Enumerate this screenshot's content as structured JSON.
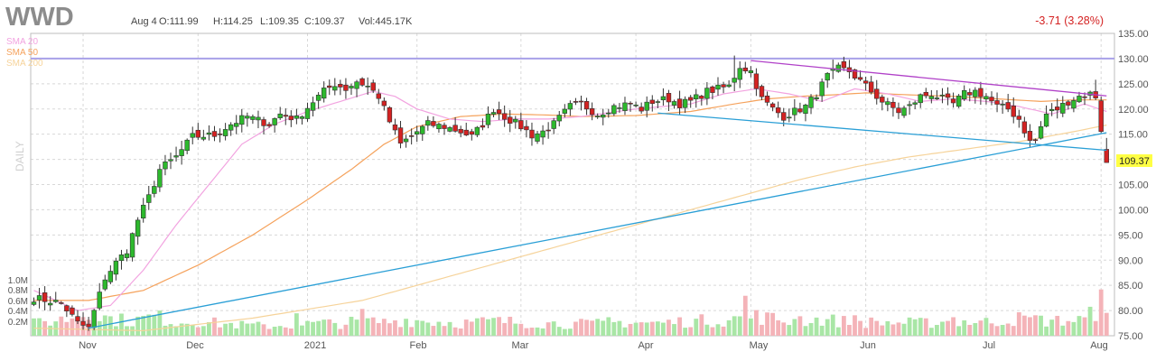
{
  "ticker": "WWD",
  "quote": {
    "date": "Aug 4",
    "open": "O:111.99",
    "high": "H:114.25",
    "low": "L:109.35",
    "close": "C:109.37",
    "volume": "Vol:445.17K",
    "change": "-3.71 (3.28%)"
  },
  "period_label": "DAILY",
  "legend": [
    {
      "label": "SMA 20",
      "color": "#f2a3e0"
    },
    {
      "label": "SMA 50",
      "color": "#f5a25c"
    },
    {
      "label": "SMA 200",
      "color": "#f6d39a"
    }
  ],
  "last_price_label": "109.37",
  "colors": {
    "up": "#2db92d",
    "down": "#d42222",
    "vol_up": "#a9e6a6",
    "vol_down": "#f4b3b8",
    "grid": "#d8d8d8",
    "resistance": "#a8a0e8",
    "trend_blue": "#2a9fd6",
    "trend_purple": "#b040c8",
    "price_tag": "#ffff44"
  },
  "chart_data": {
    "type": "candlestick",
    "x_ticks": [
      "Nov",
      "Dec",
      "2021",
      "Feb",
      "Mar",
      "Apr",
      "May",
      "Jun",
      "Jul",
      "Aug"
    ],
    "y_ticks": [
      "135.00",
      "130.00",
      "125.00",
      "120.00",
      "115.00",
      "110.00",
      "105.00",
      "100.00",
      "95.00",
      "90.00",
      "85.00",
      "80.00",
      "75.00"
    ],
    "ylim": [
      75,
      135
    ],
    "volume_ticks": [
      "1.0M",
      "0.8M",
      "0.6M",
      "0.4M",
      "0.2M"
    ],
    "volume_max": 1000000,
    "horizontal_level": 130,
    "ohlc_anchors": [
      [
        0,
        82.5
      ],
      [
        5,
        81.5
      ],
      [
        8,
        77.5
      ],
      [
        10,
        76.5
      ],
      [
        13,
        86.5
      ],
      [
        15,
        89.5
      ],
      [
        17,
        92.0
      ],
      [
        19,
        98.0
      ],
      [
        21,
        102.5
      ],
      [
        23,
        108.0
      ],
      [
        26,
        110.5
      ],
      [
        29,
        114.5
      ],
      [
        33,
        114.8
      ],
      [
        36,
        117.0
      ],
      [
        39,
        118.5
      ],
      [
        43,
        117.0
      ],
      [
        45,
        119.0
      ],
      [
        48,
        118.0
      ],
      [
        51,
        121.5
      ],
      [
        53,
        123.5
      ],
      [
        55,
        125.0
      ],
      [
        57,
        124.0
      ],
      [
        59,
        125.5
      ],
      [
        61,
        124.5
      ],
      [
        63,
        122.5
      ],
      [
        65,
        117.5
      ],
      [
        67,
        113.0
      ],
      [
        70,
        115.5
      ],
      [
        72,
        117.0
      ],
      [
        75,
        116.5
      ],
      [
        78,
        115.5
      ],
      [
        80,
        114.5
      ],
      [
        82,
        117.0
      ],
      [
        84,
        120.0
      ],
      [
        86,
        118.5
      ],
      [
        89,
        116.5
      ],
      [
        91,
        114.8
      ],
      [
        93,
        115.5
      ],
      [
        95,
        117.0
      ],
      [
        98,
        120.5
      ],
      [
        100,
        121.0
      ],
      [
        103,
        119.0
      ],
      [
        106,
        120.5
      ],
      [
        109,
        121.0
      ],
      [
        111,
        120.0
      ],
      [
        113,
        121.5
      ],
      [
        116,
        122.0
      ],
      [
        118,
        121.0
      ],
      [
        120,
        121.5
      ],
      [
        123,
        123.5
      ],
      [
        125,
        124.0
      ],
      [
        127,
        124.5
      ],
      [
        129,
        128.5
      ],
      [
        131,
        127.5
      ],
      [
        133,
        122.0
      ],
      [
        135,
        120.0
      ],
      [
        137,
        118.5
      ],
      [
        139,
        119.5
      ],
      [
        141,
        120.5
      ],
      [
        143,
        123.0
      ],
      [
        145,
        126.5
      ],
      [
        147,
        128.0
      ],
      [
        149,
        127.5
      ],
      [
        151,
        125.5
      ],
      [
        153,
        123.5
      ],
      [
        155,
        121.5
      ],
      [
        158,
        119.5
      ],
      [
        160,
        120.5
      ],
      [
        162,
        122.5
      ],
      [
        164,
        123.0
      ],
      [
        166,
        122.0
      ],
      [
        168,
        121.0
      ],
      [
        170,
        123.0
      ],
      [
        172,
        123.5
      ],
      [
        174,
        122.5
      ],
      [
        176,
        120.5
      ],
      [
        178,
        120.0
      ],
      [
        180,
        118.0
      ],
      [
        182,
        113.5
      ],
      [
        183,
        113.8
      ],
      [
        185,
        119.0
      ],
      [
        187,
        120.0
      ],
      [
        189,
        121.5
      ],
      [
        191,
        122.5
      ],
      [
        193,
        123.0
      ],
      [
        194,
        122.5
      ],
      [
        196,
        109.4
      ]
    ],
    "sma20_anchors": [
      [
        0,
        84
      ],
      [
        8,
        80
      ],
      [
        14,
        81
      ],
      [
        20,
        88
      ],
      [
        26,
        97
      ],
      [
        32,
        105
      ],
      [
        38,
        113
      ],
      [
        44,
        117
      ],
      [
        50,
        119.5
      ],
      [
        56,
        121.5
      ],
      [
        62,
        123.5
      ],
      [
        66,
        122.5
      ],
      [
        70,
        120
      ],
      [
        76,
        118
      ],
      [
        82,
        117.5
      ],
      [
        88,
        118
      ],
      [
        94,
        118
      ],
      [
        100,
        118.5
      ],
      [
        110,
        120
      ],
      [
        120,
        121
      ],
      [
        126,
        123
      ],
      [
        132,
        124
      ],
      [
        138,
        123
      ],
      [
        144,
        121.5
      ],
      [
        150,
        124
      ],
      [
        156,
        123
      ],
      [
        162,
        121.5
      ],
      [
        168,
        122
      ],
      [
        174,
        121.5
      ],
      [
        180,
        120.5
      ],
      [
        186,
        119
      ],
      [
        192,
        121
      ],
      [
        196,
        119.5
      ]
    ],
    "sma50_anchors": [
      [
        0,
        82
      ],
      [
        10,
        82
      ],
      [
        20,
        84
      ],
      [
        30,
        89
      ],
      [
        40,
        95
      ],
      [
        50,
        102
      ],
      [
        58,
        108
      ],
      [
        64,
        113
      ],
      [
        70,
        116.5
      ],
      [
        78,
        118.5
      ],
      [
        86,
        119
      ],
      [
        94,
        118.8
      ],
      [
        100,
        118.5
      ],
      [
        110,
        118.7
      ],
      [
        120,
        119.5
      ],
      [
        128,
        121
      ],
      [
        134,
        122
      ],
      [
        140,
        122.5
      ],
      [
        146,
        122.8
      ],
      [
        152,
        123.2
      ],
      [
        160,
        122.8
      ],
      [
        168,
        122.5
      ],
      [
        176,
        122
      ],
      [
        184,
        121.5
      ],
      [
        190,
        121.8
      ],
      [
        196,
        121.8
      ]
    ],
    "sma200_anchors": [
      [
        0,
        76.5
      ],
      [
        20,
        76
      ],
      [
        40,
        78.5
      ],
      [
        60,
        82
      ],
      [
        70,
        85
      ],
      [
        80,
        88
      ],
      [
        90,
        91
      ],
      [
        100,
        94
      ],
      [
        110,
        97
      ],
      [
        120,
        100
      ],
      [
        130,
        103
      ],
      [
        140,
        106
      ],
      [
        150,
        108.5
      ],
      [
        160,
        110.5
      ],
      [
        170,
        112
      ],
      [
        180,
        113.5
      ],
      [
        190,
        115.5
      ],
      [
        196,
        116.8
      ]
    ],
    "volume_anchors": [
      [
        0,
        0.25
      ],
      [
        6,
        0.35
      ],
      [
        10,
        0.45
      ],
      [
        14,
        0.35
      ],
      [
        18,
        0.3
      ],
      [
        22,
        0.4
      ],
      [
        26,
        0.28
      ],
      [
        30,
        0.3
      ],
      [
        34,
        0.25
      ],
      [
        38,
        0.22
      ],
      [
        42,
        0.2
      ],
      [
        48,
        0.22
      ],
      [
        52,
        0.26
      ],
      [
        56,
        0.25
      ],
      [
        60,
        0.3
      ],
      [
        64,
        0.28
      ],
      [
        68,
        0.33
      ],
      [
        72,
        0.3
      ],
      [
        78,
        0.26
      ],
      [
        84,
        0.3
      ],
      [
        90,
        0.27
      ],
      [
        96,
        0.25
      ],
      [
        102,
        0.24
      ],
      [
        108,
        0.28
      ],
      [
        114,
        0.26
      ],
      [
        120,
        0.3
      ],
      [
        126,
        0.32
      ],
      [
        132,
        0.4
      ],
      [
        138,
        0.3
      ],
      [
        144,
        0.33
      ],
      [
        150,
        0.28
      ],
      [
        156,
        0.27
      ],
      [
        162,
        0.26
      ],
      [
        168,
        0.3
      ],
      [
        174,
        0.28
      ],
      [
        180,
        0.35
      ],
      [
        186,
        0.3
      ],
      [
        192,
        0.33
      ],
      [
        196,
        0.7
      ]
    ],
    "volume_spikes": [
      [
        48,
        0.46
      ],
      [
        60,
        0.55
      ],
      [
        105,
        0.38
      ],
      [
        130,
        0.82
      ],
      [
        140,
        0.4
      ],
      [
        150,
        0.42
      ],
      [
        168,
        0.38
      ],
      [
        183,
        0.42
      ],
      [
        195,
        0.95
      ]
    ],
    "trendlines": [
      {
        "name": "support",
        "color": "blue",
        "points": [
          [
            10,
            76.5
          ],
          [
            196,
            115.3
          ]
        ]
      },
      {
        "name": "channel-lower",
        "color": "blue",
        "points": [
          [
            114,
            119.2
          ],
          [
            196,
            111.8
          ]
        ]
      },
      {
        "name": "channel-upper",
        "color": "purple",
        "points": [
          [
            131,
            129.6
          ],
          [
            196,
            122.6
          ]
        ]
      }
    ]
  }
}
